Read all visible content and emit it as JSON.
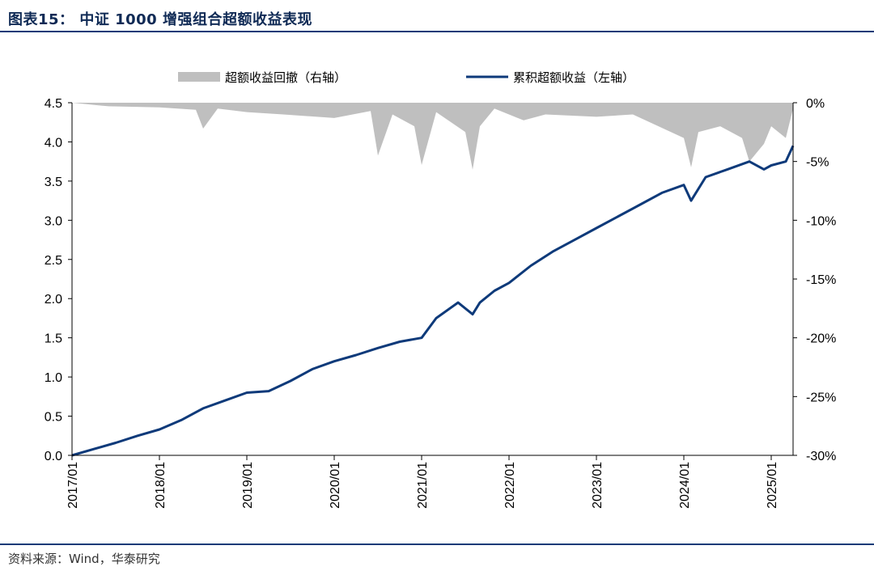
{
  "page": {
    "title": "图表15：  中证 1000 增强组合超额收益表现",
    "source": "资料来源：Wind，华泰研究"
  },
  "chart_data": {
    "type": "line",
    "legend": [
      {
        "name": "超额收益回撤（右轴）",
        "kind": "area",
        "color": "#bfbfbf"
      },
      {
        "name": "累积超额收益（左轴）",
        "kind": "line",
        "color": "#0e3a7a"
      }
    ],
    "x_ticks": [
      "2017/01",
      "2018/01",
      "2019/01",
      "2020/01",
      "2021/01",
      "2022/01",
      "2023/01",
      "2024/01",
      "2025/01"
    ],
    "x_range": [
      "2017-01",
      "2025-04"
    ],
    "y_left": {
      "ylim": [
        0,
        4.5
      ],
      "ticks": [
        "0.0",
        "0.5",
        "1.0",
        "1.5",
        "2.0",
        "2.5",
        "3.0",
        "3.5",
        "4.0",
        "4.5"
      ]
    },
    "y_right": {
      "ylim": [
        -30,
        0
      ],
      "ticks": [
        "0%",
        "-5%",
        "-10%",
        "-15%",
        "-20%",
        "-25%",
        "-30%"
      ]
    },
    "series": [
      {
        "name": "累积超额收益（左轴）",
        "axis": "left",
        "x": [
          "2017-01",
          "2017-04",
          "2017-07",
          "2017-10",
          "2018-01",
          "2018-04",
          "2018-07",
          "2018-10",
          "2019-01",
          "2019-04",
          "2019-07",
          "2019-10",
          "2020-01",
          "2020-04",
          "2020-07",
          "2020-10",
          "2021-01",
          "2021-03",
          "2021-06",
          "2021-08",
          "2021-09",
          "2021-11",
          "2022-01",
          "2022-04",
          "2022-07",
          "2022-10",
          "2023-01",
          "2023-04",
          "2023-07",
          "2023-10",
          "2024-01",
          "2024-02",
          "2024-04",
          "2024-07",
          "2024-10",
          "2024-12",
          "2025-01",
          "2025-03",
          "2025-04"
        ],
        "values": [
          0.0,
          0.08,
          0.16,
          0.25,
          0.33,
          0.45,
          0.6,
          0.7,
          0.8,
          0.82,
          0.95,
          1.1,
          1.2,
          1.28,
          1.37,
          1.45,
          1.5,
          1.75,
          1.95,
          1.8,
          1.95,
          2.1,
          2.2,
          2.42,
          2.6,
          2.75,
          2.9,
          3.05,
          3.2,
          3.35,
          3.45,
          3.25,
          3.55,
          3.65,
          3.75,
          3.65,
          3.7,
          3.75,
          3.95
        ]
      },
      {
        "name": "超额收益回撤（右轴）",
        "axis": "right",
        "x": [
          "2017-01",
          "2017-06",
          "2018-01",
          "2018-06",
          "2018-07",
          "2018-09",
          "2019-01",
          "2019-06",
          "2020-01",
          "2020-06",
          "2020-07",
          "2020-09",
          "2020-12",
          "2021-01",
          "2021-03",
          "2021-07",
          "2021-08",
          "2021-09",
          "2021-11",
          "2022-03",
          "2022-06",
          "2023-01",
          "2023-06",
          "2024-01",
          "2024-02",
          "2024-03",
          "2024-06",
          "2024-09",
          "2024-10",
          "2024-12",
          "2025-01",
          "2025-03",
          "2025-04"
        ],
        "values": [
          0,
          -0.3,
          -0.4,
          -0.6,
          -2.2,
          -0.5,
          -0.8,
          -1.0,
          -1.3,
          -0.7,
          -4.5,
          -1.0,
          -2.0,
          -5.3,
          -0.8,
          -2.5,
          -5.7,
          -2.0,
          -0.5,
          -1.5,
          -1.0,
          -1.2,
          -1.0,
          -3.0,
          -5.5,
          -2.5,
          -2.0,
          -3.0,
          -5.0,
          -3.5,
          -2.0,
          -3.0,
          -0.5
        ]
      }
    ],
    "grid": false
  }
}
